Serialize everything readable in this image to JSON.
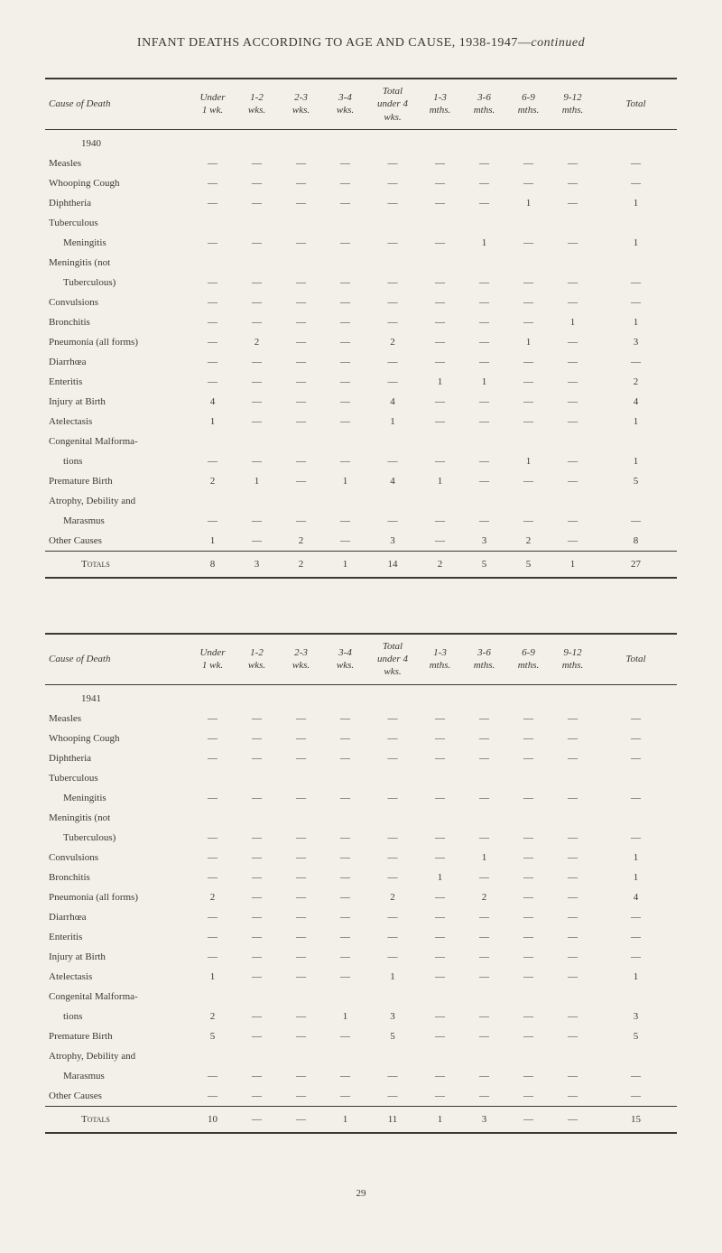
{
  "title_prefix": "INFANT DEATHS ACCORDING TO AGE AND CAUSE, 1938-1947—",
  "title_suffix": "continued",
  "page_number": "29",
  "columns": [
    "Cause of Death",
    "Under 1 wk.",
    "1-2 wks.",
    "2-3 wks.",
    "3-4 wks.",
    "Total under 4 wks.",
    "1-3 mths.",
    "3-6 mths.",
    "6-9 mths.",
    "9-12 mths.",
    "Total"
  ],
  "tables": [
    {
      "year": "1940",
      "rows": [
        {
          "label": "Measles",
          "cells": [
            "—",
            "—",
            "—",
            "—",
            "—",
            "—",
            "—",
            "—",
            "—",
            "—"
          ]
        },
        {
          "label": "Whooping Cough",
          "cells": [
            "—",
            "—",
            "—",
            "—",
            "—",
            "—",
            "—",
            "—",
            "—",
            "—"
          ]
        },
        {
          "label": "Diphtheria",
          "cells": [
            "—",
            "—",
            "—",
            "—",
            "—",
            "—",
            "—",
            "1",
            "—",
            "1"
          ]
        },
        {
          "label": "Tuberculous",
          "cells": [
            "",
            "",
            "",
            "",
            "",
            "",
            "",
            "",
            "",
            ""
          ]
        },
        {
          "label": "Meningitis",
          "indent": true,
          "cells": [
            "—",
            "—",
            "—",
            "—",
            "—",
            "—",
            "1",
            "—",
            "—",
            "1"
          ]
        },
        {
          "label": "Meningitis (not",
          "cells": [
            "",
            "",
            "",
            "",
            "",
            "",
            "",
            "",
            "",
            ""
          ]
        },
        {
          "label": "Tuberculous)",
          "indent": true,
          "cells": [
            "—",
            "—",
            "—",
            "—",
            "—",
            "—",
            "—",
            "—",
            "—",
            "—"
          ]
        },
        {
          "label": "Convulsions",
          "cells": [
            "—",
            "—",
            "—",
            "—",
            "—",
            "—",
            "—",
            "—",
            "—",
            "—"
          ]
        },
        {
          "label": "Bronchitis",
          "cells": [
            "—",
            "—",
            "—",
            "—",
            "—",
            "—",
            "—",
            "—",
            "1",
            "1"
          ]
        },
        {
          "label": "Pneumonia (all forms)",
          "cells": [
            "—",
            "2",
            "—",
            "—",
            "2",
            "—",
            "—",
            "1",
            "—",
            "3"
          ]
        },
        {
          "label": "Diarrhœa",
          "cells": [
            "—",
            "—",
            "—",
            "—",
            "—",
            "—",
            "—",
            "—",
            "—",
            "—"
          ]
        },
        {
          "label": "Enteritis",
          "cells": [
            "—",
            "—",
            "—",
            "—",
            "—",
            "1",
            "1",
            "—",
            "—",
            "2"
          ]
        },
        {
          "label": "Injury at Birth",
          "cells": [
            "4",
            "—",
            "—",
            "—",
            "4",
            "—",
            "—",
            "—",
            "—",
            "4"
          ]
        },
        {
          "label": "Atelectasis",
          "cells": [
            "1",
            "—",
            "—",
            "—",
            "1",
            "—",
            "—",
            "—",
            "—",
            "1"
          ]
        },
        {
          "label": "Congenital Malforma-",
          "cells": [
            "",
            "",
            "",
            "",
            "",
            "",
            "",
            "",
            "",
            ""
          ]
        },
        {
          "label": "tions",
          "indent": true,
          "cells": [
            "—",
            "—",
            "—",
            "—",
            "—",
            "—",
            "—",
            "1",
            "—",
            "1"
          ]
        },
        {
          "label": "Premature Birth",
          "cells": [
            "2",
            "1",
            "—",
            "1",
            "4",
            "1",
            "—",
            "—",
            "—",
            "5"
          ]
        },
        {
          "label": "Atrophy, Debility and",
          "cells": [
            "",
            "",
            "",
            "",
            "",
            "",
            "",
            "",
            "",
            ""
          ]
        },
        {
          "label": "Marasmus",
          "indent": true,
          "cells": [
            "—",
            "—",
            "—",
            "—",
            "—",
            "—",
            "—",
            "—",
            "—",
            "—"
          ]
        },
        {
          "label": "Other Causes",
          "cells": [
            "1",
            "—",
            "2",
            "—",
            "3",
            "—",
            "3",
            "2",
            "—",
            "8"
          ]
        }
      ],
      "totals": {
        "label": "Totals",
        "cells": [
          "8",
          "3",
          "2",
          "1",
          "14",
          "2",
          "5",
          "5",
          "1",
          "27"
        ]
      }
    },
    {
      "year": "1941",
      "rows": [
        {
          "label": "Measles",
          "cells": [
            "—",
            "—",
            "—",
            "—",
            "—",
            "—",
            "—",
            "—",
            "—",
            "—"
          ]
        },
        {
          "label": "Whooping Cough",
          "cells": [
            "—",
            "—",
            "—",
            "—",
            "—",
            "—",
            "—",
            "—",
            "—",
            "—"
          ]
        },
        {
          "label": "Diphtheria",
          "cells": [
            "—",
            "—",
            "—",
            "—",
            "—",
            "—",
            "—",
            "—",
            "—",
            "—"
          ]
        },
        {
          "label": "Tuberculous",
          "cells": [
            "",
            "",
            "",
            "",
            "",
            "",
            "",
            "",
            "",
            ""
          ]
        },
        {
          "label": "Meningitis",
          "indent": true,
          "cells": [
            "—",
            "—",
            "—",
            "—",
            "—",
            "—",
            "—",
            "—",
            "—",
            "—"
          ]
        },
        {
          "label": "Meningitis (not",
          "cells": [
            "",
            "",
            "",
            "",
            "",
            "",
            "",
            "",
            "",
            ""
          ]
        },
        {
          "label": "Tuberculous)",
          "indent": true,
          "cells": [
            "—",
            "—",
            "—",
            "—",
            "—",
            "—",
            "—",
            "—",
            "—",
            "—"
          ]
        },
        {
          "label": "Convulsions",
          "cells": [
            "—",
            "—",
            "—",
            "—",
            "—",
            "—",
            "1",
            "—",
            "—",
            "1"
          ]
        },
        {
          "label": "Bronchitis",
          "cells": [
            "—",
            "—",
            "—",
            "—",
            "—",
            "1",
            "—",
            "—",
            "—",
            "1"
          ]
        },
        {
          "label": "Pneumonia (all forms)",
          "cells": [
            "2",
            "—",
            "—",
            "—",
            "2",
            "—",
            "2",
            "—",
            "—",
            "4"
          ]
        },
        {
          "label": "Diarrhœa",
          "cells": [
            "—",
            "—",
            "—",
            "—",
            "—",
            "—",
            "—",
            "—",
            "—",
            "—"
          ]
        },
        {
          "label": "Enteritis",
          "cells": [
            "—",
            "—",
            "—",
            "—",
            "—",
            "—",
            "—",
            "—",
            "—",
            "—"
          ]
        },
        {
          "label": "Injury at Birth",
          "cells": [
            "—",
            "—",
            "—",
            "—",
            "—",
            "—",
            "—",
            "—",
            "—",
            "—"
          ]
        },
        {
          "label": "Atelectasis",
          "cells": [
            "1",
            "—",
            "—",
            "—",
            "1",
            "—",
            "—",
            "—",
            "—",
            "1"
          ]
        },
        {
          "label": "Congenital Malforma-",
          "cells": [
            "",
            "",
            "",
            "",
            "",
            "",
            "",
            "",
            "",
            ""
          ]
        },
        {
          "label": "tions",
          "indent": true,
          "cells": [
            "2",
            "—",
            "—",
            "1",
            "3",
            "—",
            "—",
            "—",
            "—",
            "3"
          ]
        },
        {
          "label": "Premature Birth",
          "cells": [
            "5",
            "—",
            "—",
            "—",
            "5",
            "—",
            "—",
            "—",
            "—",
            "5"
          ]
        },
        {
          "label": "Atrophy, Debility and",
          "cells": [
            "",
            "",
            "",
            "",
            "",
            "",
            "",
            "",
            "",
            ""
          ]
        },
        {
          "label": "Marasmus",
          "indent": true,
          "cells": [
            "—",
            "—",
            "—",
            "—",
            "—",
            "—",
            "—",
            "—",
            "—",
            "—"
          ]
        },
        {
          "label": "Other Causes",
          "cells": [
            "—",
            "—",
            "—",
            "—",
            "—",
            "—",
            "—",
            "—",
            "—",
            "—"
          ]
        }
      ],
      "totals": {
        "label": "Totals",
        "cells": [
          "10",
          "—",
          "—",
          "1",
          "11",
          "1",
          "3",
          "—",
          "—",
          "15"
        ]
      }
    }
  ],
  "col_widths": [
    "23%",
    "7%",
    "7%",
    "7%",
    "7%",
    "8%",
    "7%",
    "7%",
    "7%",
    "7%",
    "13%"
  ],
  "colors": {
    "background": "#f2f0e8",
    "text": "#3a3a32",
    "border": "#3a3a32"
  }
}
